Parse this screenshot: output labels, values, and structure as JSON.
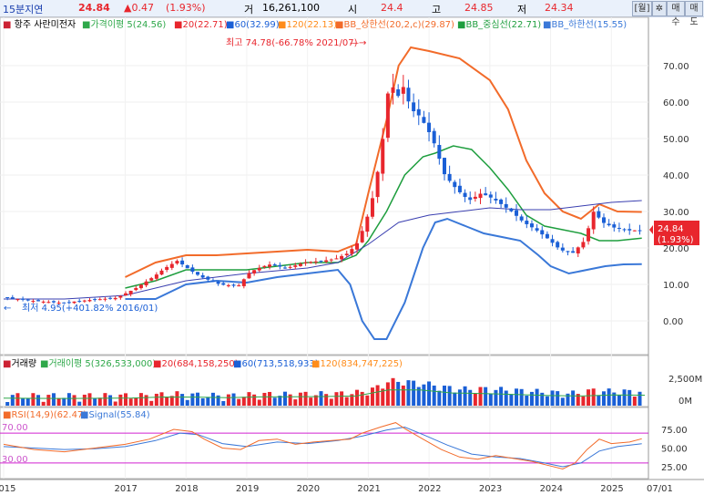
{
  "header": {
    "interval": "15분지연",
    "price": "24.84",
    "change": "▲0.47",
    "change_pct": "(1.93%)",
    "volume_label": "거",
    "volume": "16,261,100",
    "open_label": "시",
    "open": "24.4",
    "high_label": "고",
    "high": "24.85",
    "low_label": "저",
    "low": "24.34",
    "btn_period": "[월]",
    "btn_gear": "✲",
    "btn_buy": "매수",
    "btn_sell": "매도"
  },
  "colors": {
    "up": "#e8262d",
    "down": "#1a5fd6",
    "ma5": "#2fa84a",
    "ma20": "#e8262d",
    "ma60": "#1a5fd6",
    "ma120": "#ff8c1a",
    "bb_upper": "#f26b2a",
    "bb_mid": "#1e9e3e",
    "bb_lower": "#3a78d8",
    "long_ma": "#3a3fb0",
    "rsi": "#f26b2a",
    "signal": "#3a78d8",
    "rsi_band": "#d020d0"
  },
  "main_legend": [
    {
      "key": "name",
      "text": "항주 사란미전자",
      "color": "#000000"
    },
    {
      "key": "ma5",
      "text": "가격이평 5(24.56)",
      "color": "#2fa84a"
    },
    {
      "key": "ma20",
      "text": "20(22.71)",
      "color": "#e8262d"
    },
    {
      "key": "ma60",
      "text": "60(32.99)",
      "color": "#1a5fd6"
    },
    {
      "key": "ma120",
      "text": "120(22.13)",
      "color": "#ff8c1a"
    },
    {
      "key": "bbu",
      "text": "BB_상한선(20,2,c)(29.87)",
      "color": "#f26b2a"
    },
    {
      "key": "bbm",
      "text": "BB_중심선(22.71)",
      "color": "#1e9e3e"
    },
    {
      "key": "bbl",
      "text": "BB_하한선(15.55)",
      "color": "#3a78d8"
    }
  ],
  "volume_legend": [
    {
      "text": "거래량",
      "color": "#000000"
    },
    {
      "text": "거래이평 5(326,533,000)",
      "color": "#2fa84a"
    },
    {
      "text": "20(684,158,250)",
      "color": "#e8262d"
    },
    {
      "text": "60(713,518,933)",
      "color": "#1a5fd6"
    },
    {
      "text": "120(834,747,225)",
      "color": "#ff8c1a"
    }
  ],
  "rsi_legend": [
    {
      "text": "RSI(14,9)(62.47)",
      "color": "#f26b2a"
    },
    {
      "text": "Signal(55.84)",
      "color": "#3a78d8"
    }
  ],
  "annotations": {
    "high_note": "최고 74.78(-66.78% 2021/07)",
    "low_note": "최저 4.95(+401.82% 2016/01)",
    "price_tag": "24.84",
    "price_tag_pct": "(1.93%)",
    "rsi_upper_label": "70.00",
    "rsi_lower_label": "30.00"
  },
  "chart_data": {
    "type": "candlestick",
    "interval": "monthly",
    "price_axis": {
      "ticks": [
        "70.00",
        "60.00",
        "50.00",
        "40.00",
        "30.00",
        "20.00",
        "10.00",
        "0.00"
      ],
      "ylim": [
        -5,
        78
      ]
    },
    "volume_axis": {
      "ticks": [
        "2,500M",
        "0M"
      ]
    },
    "rsi_axis": {
      "ticks": [
        "75.00",
        "50.00",
        "25.00"
      ],
      "bands": [
        70,
        30
      ]
    },
    "x_labels": [
      "2015",
      "2017",
      "2018",
      "2019",
      "2020",
      "2021",
      "2022",
      "2023",
      "2024",
      "2025",
      "07/01"
    ],
    "x_label_t": [
      2015.0,
      2017.0,
      2018.0,
      2019.0,
      2020.0,
      2021.0,
      2022.0,
      2023.0,
      2024.0,
      2025.0,
      2025.5
    ],
    "x_range": [
      2015.0,
      2025.55
    ],
    "close_path": [
      [
        2015.0,
        6.5
      ],
      [
        2015.5,
        5.5
      ],
      [
        2016.0,
        4.95
      ],
      [
        2016.5,
        5.8
      ],
      [
        2016.9,
        6.3
      ],
      [
        2017.2,
        8.8
      ],
      [
        2017.5,
        12.0
      ],
      [
        2017.7,
        14.5
      ],
      [
        2017.9,
        16.5
      ],
      [
        2018.1,
        14.0
      ],
      [
        2018.3,
        12.0
      ],
      [
        2018.6,
        10.0
      ],
      [
        2018.9,
        9.5
      ],
      [
        2019.1,
        13.5
      ],
      [
        2019.4,
        15.5
      ],
      [
        2019.7,
        14.5
      ],
      [
        2020.0,
        16.0
      ],
      [
        2020.3,
        16.5
      ],
      [
        2020.5,
        17.0
      ],
      [
        2020.7,
        18.5
      ],
      [
        2020.85,
        21.0
      ],
      [
        2021.0,
        27.0
      ],
      [
        2021.15,
        36.0
      ],
      [
        2021.3,
        52.0
      ],
      [
        2021.4,
        68.0
      ],
      [
        2021.5,
        60.0
      ],
      [
        2021.6,
        65.0
      ],
      [
        2021.75,
        58.0
      ],
      [
        2021.9,
        56.0
      ],
      [
        2022.1,
        50.0
      ],
      [
        2022.3,
        40.0
      ],
      [
        2022.5,
        36.0
      ],
      [
        2022.7,
        33.0
      ],
      [
        2022.9,
        35.0
      ],
      [
        2023.1,
        33.5
      ],
      [
        2023.4,
        30.0
      ],
      [
        2023.6,
        27.0
      ],
      [
        2023.8,
        25.0
      ],
      [
        2024.0,
        22.5
      ],
      [
        2024.2,
        19.5
      ],
      [
        2024.4,
        18.5
      ],
      [
        2024.6,
        22.0
      ],
      [
        2024.75,
        30.0
      ],
      [
        2024.9,
        27.0
      ],
      [
        2025.1,
        25.5
      ],
      [
        2025.3,
        24.8
      ],
      [
        2025.5,
        24.84
      ]
    ],
    "bb_upper_path": [
      [
        2017.0,
        12
      ],
      [
        2017.5,
        16
      ],
      [
        2018.0,
        18
      ],
      [
        2018.5,
        18
      ],
      [
        2019.0,
        18.5
      ],
      [
        2019.5,
        19
      ],
      [
        2020.0,
        19.5
      ],
      [
        2020.5,
        19
      ],
      [
        2020.8,
        21
      ],
      [
        2021.0,
        35
      ],
      [
        2021.3,
        55
      ],
      [
        2021.5,
        70
      ],
      [
        2021.7,
        75
      ],
      [
        2022.0,
        74
      ],
      [
        2022.5,
        72
      ],
      [
        2023.0,
        66
      ],
      [
        2023.3,
        58
      ],
      [
        2023.6,
        44
      ],
      [
        2023.9,
        35
      ],
      [
        2024.2,
        30
      ],
      [
        2024.5,
        28
      ],
      [
        2024.8,
        32
      ],
      [
        2025.1,
        30
      ],
      [
        2025.5,
        29.87
      ]
    ],
    "bb_mid_path": [
      [
        2017.0,
        9
      ],
      [
        2017.5,
        11
      ],
      [
        2018.0,
        14
      ],
      [
        2018.5,
        14
      ],
      [
        2019.0,
        14
      ],
      [
        2019.5,
        15
      ],
      [
        2020.0,
        16
      ],
      [
        2020.5,
        16
      ],
      [
        2020.8,
        18
      ],
      [
        2021.0,
        22
      ],
      [
        2021.3,
        30
      ],
      [
        2021.6,
        40
      ],
      [
        2021.9,
        45
      ],
      [
        2022.1,
        46
      ],
      [
        2022.4,
        48
      ],
      [
        2022.7,
        47
      ],
      [
        2023.0,
        42
      ],
      [
        2023.3,
        36
      ],
      [
        2023.6,
        29
      ],
      [
        2023.9,
        26
      ],
      [
        2024.2,
        25
      ],
      [
        2024.5,
        24
      ],
      [
        2024.8,
        22
      ],
      [
        2025.1,
        22
      ],
      [
        2025.5,
        22.71
      ]
    ],
    "bb_lower_path": [
      [
        2017.0,
        6
      ],
      [
        2017.5,
        6
      ],
      [
        2018.0,
        10
      ],
      [
        2018.5,
        11
      ],
      [
        2019.0,
        10.5
      ],
      [
        2019.5,
        12
      ],
      [
        2020.0,
        13
      ],
      [
        2020.5,
        14
      ],
      [
        2020.7,
        10
      ],
      [
        2020.9,
        0
      ],
      [
        2021.1,
        -5
      ],
      [
        2021.3,
        -5
      ],
      [
        2021.6,
        5
      ],
      [
        2021.9,
        20
      ],
      [
        2022.1,
        27
      ],
      [
        2022.3,
        28
      ],
      [
        2022.6,
        26
      ],
      [
        2022.9,
        24
      ],
      [
        2023.2,
        23
      ],
      [
        2023.5,
        22
      ],
      [
        2023.8,
        18
      ],
      [
        2024.0,
        15
      ],
      [
        2024.3,
        13
      ],
      [
        2024.6,
        14
      ],
      [
        2024.9,
        15
      ],
      [
        2025.2,
        15.5
      ],
      [
        2025.5,
        15.55
      ]
    ],
    "long_ma_path": [
      [
        2015.0,
        6
      ],
      [
        2016.0,
        6
      ],
      [
        2017.0,
        7
      ],
      [
        2018.0,
        11
      ],
      [
        2019.0,
        13
      ],
      [
        2020.0,
        14.5
      ],
      [
        2020.5,
        16
      ],
      [
        2021.0,
        21
      ],
      [
        2021.5,
        27
      ],
      [
        2022.0,
        29
      ],
      [
        2022.5,
        30
      ],
      [
        2023.0,
        31
      ],
      [
        2023.5,
        30.5
      ],
      [
        2024.0,
        30.5
      ],
      [
        2024.5,
        31.5
      ],
      [
        2025.0,
        32.5
      ],
      [
        2025.5,
        32.99
      ]
    ],
    "rsi_path": [
      [
        2015.0,
        55
      ],
      [
        2015.5,
        48
      ],
      [
        2016.0,
        45
      ],
      [
        2016.5,
        50
      ],
      [
        2017.0,
        55
      ],
      [
        2017.4,
        62
      ],
      [
        2017.8,
        75
      ],
      [
        2018.1,
        72
      ],
      [
        2018.3,
        62
      ],
      [
        2018.6,
        50
      ],
      [
        2018.9,
        48
      ],
      [
        2019.2,
        60
      ],
      [
        2019.5,
        62
      ],
      [
        2019.8,
        55
      ],
      [
        2020.1,
        58
      ],
      [
        2020.4,
        60
      ],
      [
        2020.7,
        62
      ],
      [
        2020.9,
        70
      ],
      [
        2021.2,
        78
      ],
      [
        2021.45,
        84
      ],
      [
        2021.6,
        76
      ],
      [
        2021.9,
        62
      ],
      [
        2022.2,
        48
      ],
      [
        2022.5,
        38
      ],
      [
        2022.8,
        35
      ],
      [
        2023.1,
        40
      ],
      [
        2023.4,
        36
      ],
      [
        2023.7,
        32
      ],
      [
        2024.0,
        26
      ],
      [
        2024.2,
        22
      ],
      [
        2024.4,
        30
      ],
      [
        2024.6,
        48
      ],
      [
        2024.8,
        62
      ],
      [
        2025.0,
        56
      ],
      [
        2025.3,
        58
      ],
      [
        2025.5,
        62.47
      ]
    ],
    "signal_path": [
      [
        2015.0,
        52
      ],
      [
        2015.5,
        50
      ],
      [
        2016.0,
        48
      ],
      [
        2016.5,
        49
      ],
      [
        2017.0,
        52
      ],
      [
        2017.5,
        60
      ],
      [
        2017.9,
        70
      ],
      [
        2018.2,
        68
      ],
      [
        2018.6,
        56
      ],
      [
        2019.0,
        52
      ],
      [
        2019.5,
        58
      ],
      [
        2020.0,
        56
      ],
      [
        2020.5,
        60
      ],
      [
        2020.9,
        66
      ],
      [
        2021.3,
        74
      ],
      [
        2021.6,
        78
      ],
      [
        2021.9,
        68
      ],
      [
        2022.3,
        54
      ],
      [
        2022.7,
        42
      ],
      [
        2023.1,
        38
      ],
      [
        2023.5,
        36
      ],
      [
        2023.9,
        30
      ],
      [
        2024.2,
        25
      ],
      [
        2024.5,
        30
      ],
      [
        2024.8,
        46
      ],
      [
        2025.1,
        52
      ],
      [
        2025.5,
        55.84
      ]
    ]
  }
}
